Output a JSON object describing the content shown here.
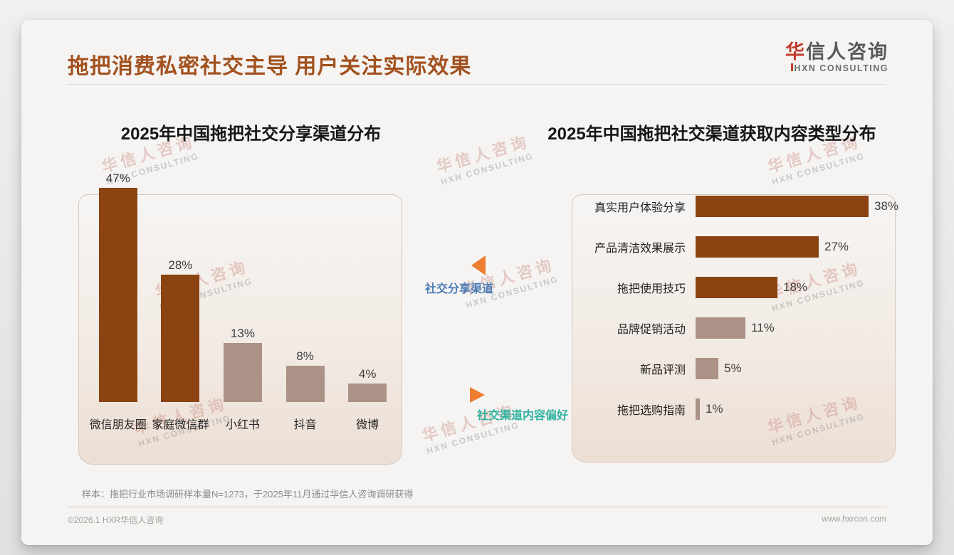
{
  "page": {
    "title": "拖把消费私密社交主导 用户关注实际效果",
    "logo": {
      "cn_first": "华",
      "cn_rest": "信人咨询",
      "en": "HXN CONSULTING"
    },
    "footnote": "样本：拖把行业市场调研样本量N=1273，于2025年11月通过华信人咨询调研获得",
    "footer_left": "©2026.1 HXR华信人咨询",
    "footer_right": "www.hxrcon.com"
  },
  "annotations": {
    "share_channel_label": "社交分享渠道",
    "content_pref_label": "社交渠道内容偏好"
  },
  "watermark": {
    "cn": "华信人咨询",
    "en": "HXN CONSULTING"
  },
  "colors": {
    "title_brown": "#a2511e",
    "bar_dark_brown": "#8a4311",
    "bar_mauve": "#ac9186",
    "arrow_orange": "#ed7d31",
    "label_blue": "#4d7cb5",
    "label_teal": "#2fb3a0",
    "logo_red": "#c23b2e"
  },
  "chart_data": [
    {
      "type": "bar",
      "orientation": "vertical",
      "title": "2025年中国拖把社交分享渠道分布",
      "categories": [
        "微信朋友圈",
        "家庭微信群",
        "小红书",
        "抖音",
        "微博"
      ],
      "values": [
        47,
        28,
        13,
        8,
        4
      ],
      "unit": "%",
      "colors": [
        "#8a4311",
        "#8a4311",
        "#ac9186",
        "#ac9186",
        "#ac9186"
      ],
      "grid": false,
      "axes_visible": false,
      "value_labels_visible": true
    },
    {
      "type": "bar",
      "orientation": "horizontal",
      "title": "2025年中国拖把社交渠道获取内容类型分布",
      "categories": [
        "真实用户体验分享",
        "产品清洁效果展示",
        "拖把使用技巧",
        "品牌促销活动",
        "新品评测",
        "拖把选购指南"
      ],
      "values": [
        38,
        27,
        18,
        11,
        5,
        1
      ],
      "unit": "%",
      "colors": [
        "#8a4311",
        "#8a4311",
        "#8a4311",
        "#ac9186",
        "#ac9186",
        "#ac9186"
      ],
      "grid": false,
      "axes_visible": false,
      "value_labels_visible": true
    }
  ]
}
